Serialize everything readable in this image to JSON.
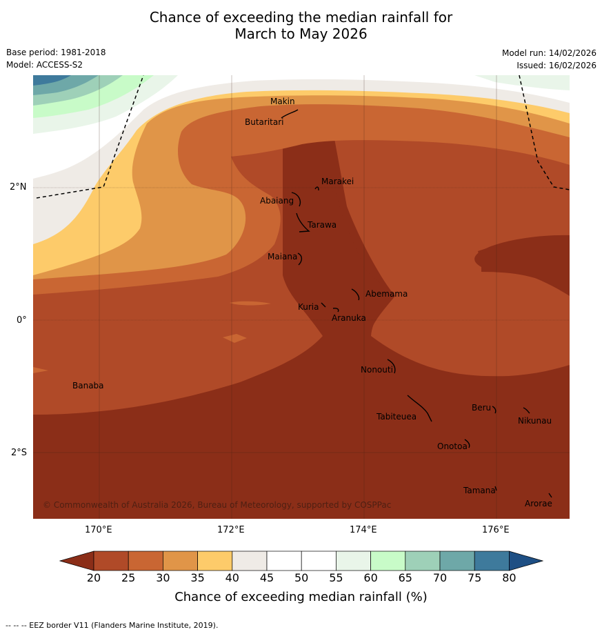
{
  "title_line1": "Chance of exceeding the median rainfall for",
  "title_line2": "March to May 2026",
  "meta": {
    "base_period": "Base period: 1981-2018",
    "model": "Model: ACCESS-S2",
    "model_run": "Model run: 14/02/2026",
    "issued": "Issued: 16/02/2026"
  },
  "axes": {
    "lat_labels": [
      "2°N",
      "0°",
      "2°S"
    ],
    "lon_labels": [
      "170°E",
      "172°E",
      "174°E",
      "176°E"
    ]
  },
  "places": [
    "Makin",
    "Butaritari",
    "Marakei",
    "Abaiang",
    "Tarawa",
    "Maiana",
    "Abemama",
    "Kuria",
    "Aranuka",
    "Nonouti",
    "Banaba",
    "Beru",
    "Tabiteuea",
    "Nikunau",
    "Onotoa",
    "Tamana",
    "Arorae"
  ],
  "copyright": "© Commonwealth of Australia 2026, Bureau of Meteorology, supported by COSPPac",
  "colorbar": {
    "ticks": [
      "20",
      "25",
      "30",
      "35",
      "40",
      "45",
      "50",
      "55",
      "60",
      "65",
      "70",
      "75",
      "80"
    ],
    "colors": {
      "below20": "#8b2e18",
      "c20_25": "#b04a28",
      "c25_30": "#c96633",
      "c30_35": "#e09548",
      "c35_40": "#fdcb6a",
      "c40_45": "#efebe6",
      "c45_50": "#ffffff",
      "c50_55": "#ffffff",
      "c55_60": "#e9f5e9",
      "c60_65": "#c8fbc8",
      "c65_70": "#9ed0b8",
      "c70_75": "#6ea8a8",
      "c75_80": "#3e7a9c",
      "above80": "#1e4f84"
    },
    "title": "Chance of exceeding median rainfall (%)"
  },
  "footnote": "--  --  -- EEZ border V11 (Flanders Marine Institute, 2019)."
}
